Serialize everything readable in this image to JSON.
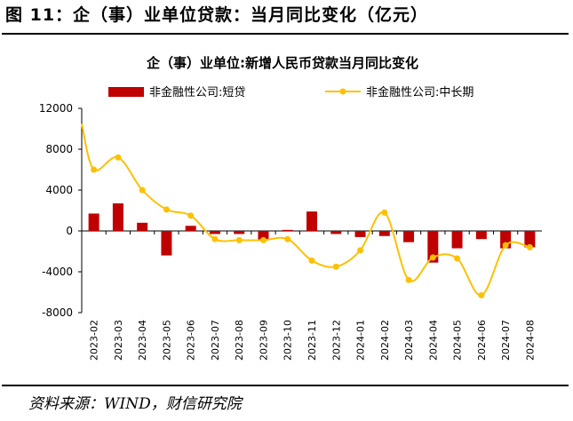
{
  "figure_title": "图 11：企（事）业单位贷款：当月同比变化（亿元）",
  "source": "资料来源：WIND，财信研究院",
  "colors": {
    "bar": "#c00000",
    "line": "#ffc000"
  },
  "chart_data": {
    "type": "bar+line",
    "title": "企（事）业单位:新增人民币贷款当月同比变化",
    "categories": [
      "2023-02",
      "2023-03",
      "2023-04",
      "2023-05",
      "2023-06",
      "2023-07",
      "2023-08",
      "2023-09",
      "2023-10",
      "2023-11",
      "2023-12",
      "2024-01",
      "2024-02",
      "2024-03",
      "2024-04",
      "2024-05",
      "2024-06",
      "2024-07",
      "2024-08"
    ],
    "series": [
      {
        "name": "非金融性公司:短贷",
        "type": "bar",
        "values": [
          1700,
          2700,
          800,
          -2400,
          500,
          -300,
          -300,
          -900,
          100,
          1900,
          -300,
          -600,
          -500,
          -1100,
          -3100,
          -1700,
          -800,
          -1700,
          -1600
        ]
      },
      {
        "name": "非金融性公司:中长期",
        "type": "line",
        "values": [
          6000,
          7200,
          4000,
          2100,
          1500,
          -800,
          -900,
          -900,
          -800,
          -2900,
          -3500,
          -1900,
          1800,
          -4800,
          -2600,
          -2700,
          -6300,
          -1400,
          -1600
        ]
      }
    ],
    "line_start_value": 10500,
    "ylim": [
      -8000,
      12000
    ],
    "yticks": [
      12000,
      8000,
      4000,
      0,
      -4000,
      -8000
    ],
    "legend_position": "top"
  }
}
